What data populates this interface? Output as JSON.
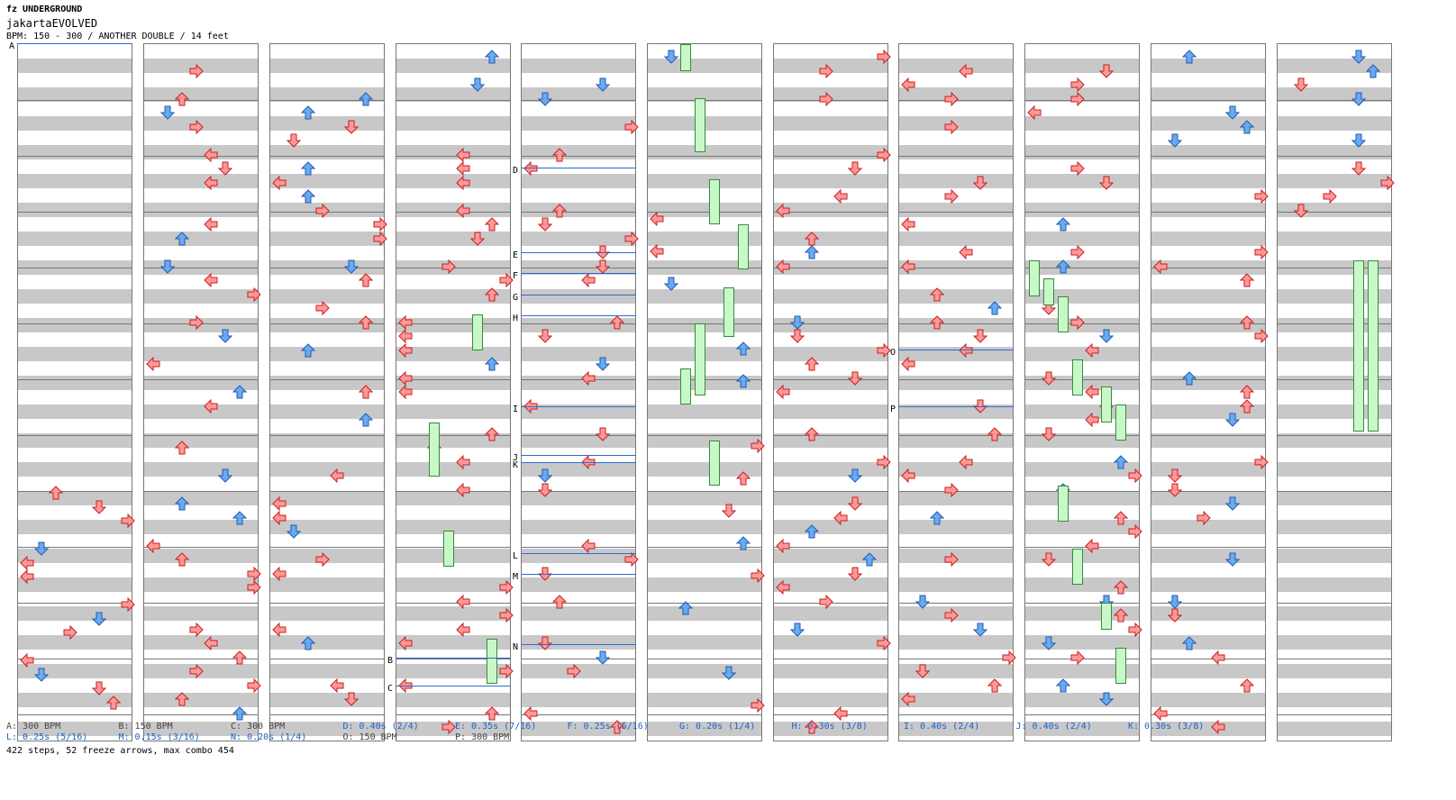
{
  "header": {
    "title": "fz UNDERGROUND",
    "song": "jakartaEVOLVED",
    "info": "BPM: 150 - 300 / ANOTHER DOUBLE / 14 feet"
  },
  "legend": [
    {
      "text": "A: 300 BPM",
      "color": "#444"
    },
    {
      "text": "B: 150 BPM",
      "color": "#444"
    },
    {
      "text": "C: 300 BPM",
      "color": "#444"
    },
    {
      "text": "D: 0.40s (2/4)",
      "color": "#1a64c8"
    },
    {
      "text": "E: 0.35s (7/16)",
      "color": "#1a64c8"
    },
    {
      "text": "F: 0.25s (5/16)",
      "color": "#1a64c8"
    },
    {
      "text": "G: 0.20s (1/4)",
      "color": "#1a64c8"
    },
    {
      "text": "H: 0.30s (3/8)",
      "color": "#1a64c8"
    },
    {
      "text": "I: 0.40s (2/4)",
      "color": "#1a64c8"
    },
    {
      "text": "J: 0.40s (2/4)",
      "color": "#1a64c8"
    },
    {
      "text": "K: 0.30s (3/8)",
      "color": "#1a64c8"
    },
    {
      "text": "L: 0.25s (5/16)",
      "color": "#1a64c8"
    },
    {
      "text": "M: 0.15s (3/16)",
      "color": "#1a64c8"
    },
    {
      "text": "N: 0.20s (1/4)",
      "color": "#1a64c8"
    },
    {
      "text": "O: 150 BPM",
      "color": "#444"
    },
    {
      "text": "P: 300 BPM",
      "color": "#444"
    }
  ],
  "footer": "422 steps, 52 freeze arrows, max combo 454",
  "colors": {
    "red_fill": "#ff9999",
    "red_stroke": "#c81e1e",
    "blue_fill": "#6aaaf0",
    "blue_stroke": "#1e5ab4",
    "green_fill": "#55dd55",
    "green_stroke": "#1a8a1a",
    "freeze_fill": "#c8f8c8",
    "freeze_stroke": "#3a8a3a",
    "marker_line": "#2a6cd0"
  },
  "markers": [
    {
      "col": 0,
      "label": "A"
    },
    {
      "col": 3,
      "label": "B"
    },
    {
      "col": 3,
      "label": "C"
    },
    {
      "col": 4,
      "label": "D"
    },
    {
      "col": 4,
      "label": "E"
    },
    {
      "col": 4,
      "label": "F"
    },
    {
      "col": 4,
      "label": "G"
    },
    {
      "col": 4,
      "label": "H"
    },
    {
      "col": 4,
      "label": "I"
    },
    {
      "col": 4,
      "label": "J"
    },
    {
      "col": 4,
      "label": "K"
    },
    {
      "col": 4,
      "label": "L"
    },
    {
      "col": 4,
      "label": "M"
    },
    {
      "col": 4,
      "label": "N"
    },
    {
      "col": 7,
      "label": "O"
    },
    {
      "col": 7,
      "label": "P"
    }
  ]
}
